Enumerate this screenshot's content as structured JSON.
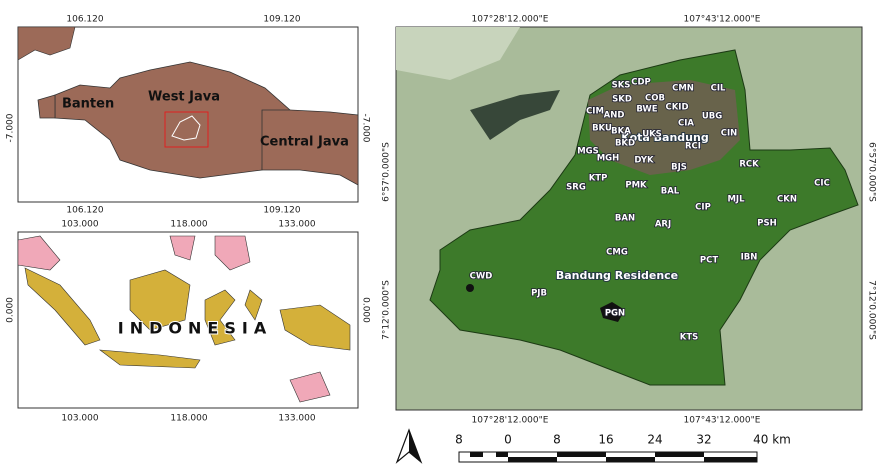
{
  "west_java_inset": {
    "top_ticks": [
      "106.120",
      "109.120"
    ],
    "bottom_ticks": [
      "106.120",
      "109.120"
    ],
    "left_tick": "-7.000",
    "right_tick": "-7.000",
    "labels": [
      "Banten",
      "West Java",
      "Central Java"
    ]
  },
  "indonesia_inset": {
    "top_ticks": [
      "103.000",
      "118.000",
      "133.000"
    ],
    "bottom_ticks": [
      "103.000",
      "118.000",
      "133.000"
    ],
    "left_tick": "0.000",
    "right_tick": "0.000",
    "label": "INDONESIA"
  },
  "main_map": {
    "top_ticks": [
      "107°28'12.000\"E",
      "107°43'12.000\"E"
    ],
    "bottom_ticks": [
      "107°28'12.000\"E",
      "107°43'12.000\"E"
    ],
    "left_ticks": [
      "6°57'0.000\"S",
      "7°12'0.000\"S"
    ],
    "right_ticks": [
      "6°57'0.000\"S",
      "7°12'0.000\"S"
    ],
    "city_label": "Kota Bandung",
    "region_label": "Bandung Residence",
    "district_codes": [
      "SKS",
      "CDP",
      "CMN",
      "CIL",
      "SKD",
      "COB",
      "CIM",
      "BWE",
      "CKID",
      "AND",
      "UBG",
      "CIA",
      "BKU",
      "BKA",
      "UKS",
      "CIN",
      "BKD",
      "RCI",
      "MGS",
      "MGH",
      "DYK",
      "BJS",
      "RCK",
      "KTP",
      "CIC",
      "SRG",
      "PMK",
      "BAL",
      "CKN",
      "CIP",
      "MJL",
      "BAN",
      "ARJ",
      "PSH",
      "CMG",
      "IBN",
      "PCT",
      "CWD",
      "PJB",
      "PGN",
      "KTS"
    ]
  },
  "scale_bar": {
    "labels": [
      "8",
      "0",
      "8",
      "16",
      "24",
      "32",
      "40 km"
    ]
  }
}
